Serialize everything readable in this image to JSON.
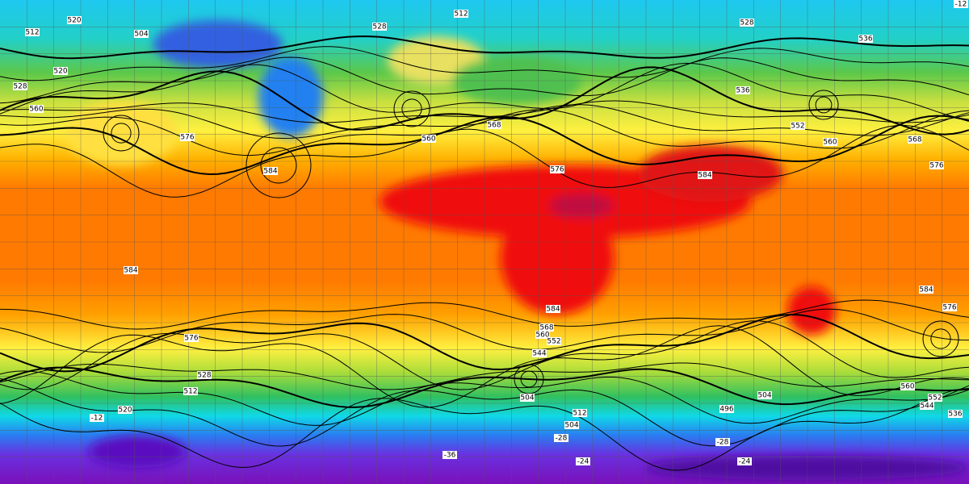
{
  "map": {
    "contour_labels": [
      512,
      520,
      504,
      528,
      512,
      528,
      536,
      520,
      528,
      560,
      576,
      584,
      560,
      568,
      576,
      584,
      560,
      568,
      576,
      536,
      552,
      584,
      576,
      584,
      568,
      560,
      552,
      544,
      584,
      576,
      504,
      512,
      504,
      496,
      504,
      520,
      528,
      512,
      560,
      552,
      544,
      536
    ],
    "temperature_labels": [
      "-12",
      "-28",
      "-24",
      "-36",
      "-12",
      "-28",
      "-24"
    ]
  }
}
